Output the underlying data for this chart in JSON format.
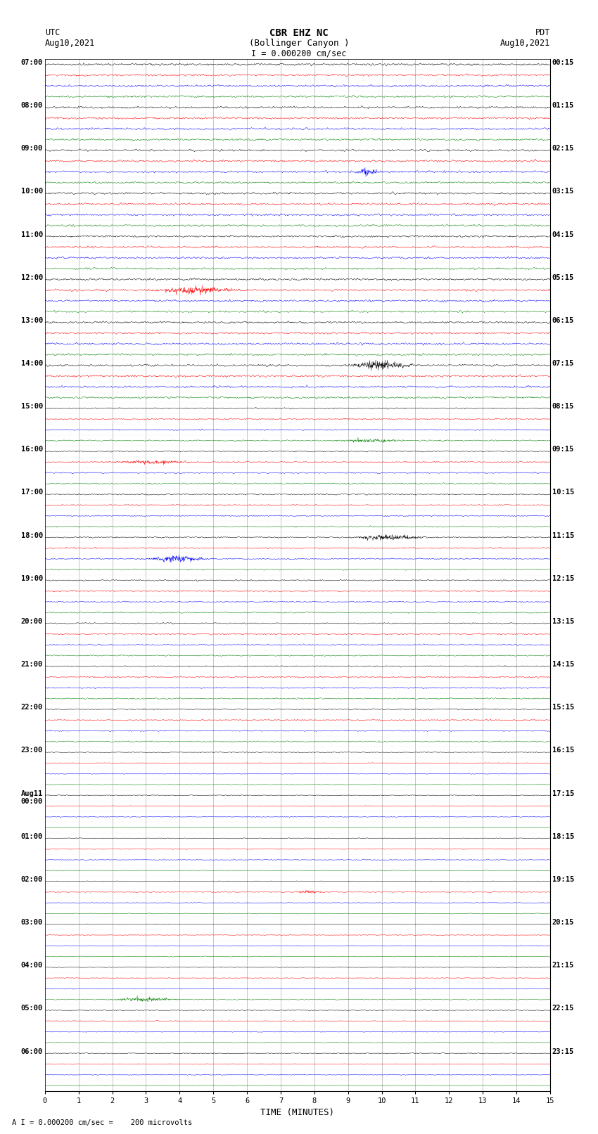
{
  "title_line1": "CBR EHZ NC",
  "title_line2": "(Bollinger Canyon )",
  "scale_label": "I = 0.000200 cm/sec",
  "bottom_label": "A I = 0.000200 cm/sec =    200 microvolts",
  "xlabel": "TIME (MINUTES)",
  "utc_header_line1": "UTC",
  "utc_header_line2": "Aug10,2021",
  "pdt_header_line1": "PDT",
  "pdt_header_line2": "Aug10,2021",
  "utc_labels": [
    "07:00",
    "08:00",
    "09:00",
    "10:00",
    "11:00",
    "12:00",
    "13:00",
    "14:00",
    "15:00",
    "16:00",
    "17:00",
    "18:00",
    "19:00",
    "20:00",
    "21:00",
    "22:00",
    "23:00",
    "Aug11\n00:00",
    "01:00",
    "02:00",
    "03:00",
    "04:00",
    "05:00",
    "06:00"
  ],
  "pdt_labels": [
    "00:15",
    "01:15",
    "02:15",
    "03:15",
    "04:15",
    "05:15",
    "06:15",
    "07:15",
    "08:15",
    "09:15",
    "10:15",
    "11:15",
    "12:15",
    "13:15",
    "14:15",
    "15:15",
    "16:15",
    "17:15",
    "18:15",
    "19:15",
    "20:15",
    "21:15",
    "22:15",
    "23:15"
  ],
  "trace_colors": [
    "black",
    "red",
    "blue",
    "green"
  ],
  "n_rows": 96,
  "n_hours": 24,
  "traces_per_hour": 4,
  "xmin": 0,
  "xmax": 15,
  "background_color": "white",
  "grid_color": "#999999",
  "seed": 42,
  "amp_early": 0.08,
  "amp_mid": 0.05,
  "amp_late": 0.03,
  "trace_linewidth": 0.35
}
